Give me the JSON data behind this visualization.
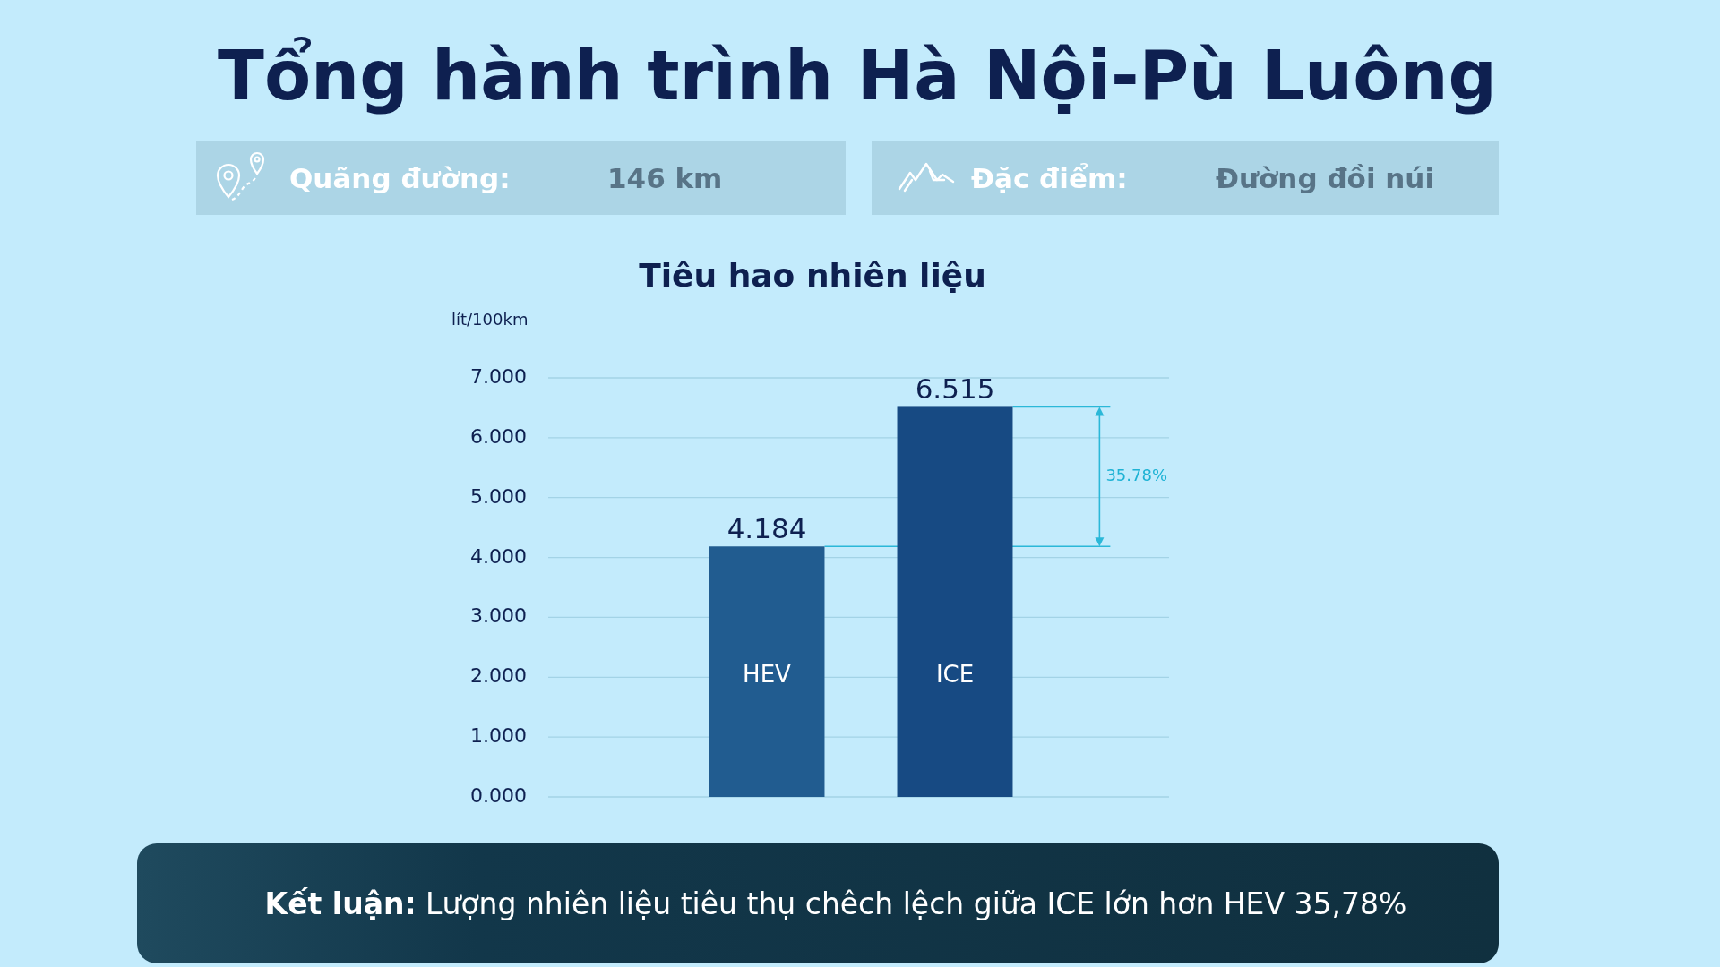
{
  "chart_data": {
    "type": "bar",
    "title": "Tổng hành trình Hà Nội-Pù Luông",
    "subtitle": "Tiêu hao nhiên liệu",
    "ylabel": "lít/100km",
    "categories": [
      "HEV",
      "ICE"
    ],
    "values": [
      4.184,
      6.515
    ],
    "colors": [
      "#215c90",
      "#174a83"
    ],
    "ylim": [
      0,
      7
    ],
    "yticks": [
      {
        "value": 0,
        "label": "0.000"
      },
      {
        "value": 1,
        "label": "1.000"
      },
      {
        "value": 2,
        "label": "2.000"
      },
      {
        "value": 3,
        "label": "3.000"
      },
      {
        "value": 4,
        "label": "4.000"
      },
      {
        "value": 5,
        "label": "5.000"
      },
      {
        "value": 6,
        "label": "6.000"
      },
      {
        "value": 7,
        "label": "7.000"
      }
    ],
    "grid": "y",
    "data_labels": true,
    "ref_lines": [
      {
        "axis": "y",
        "value": 4.184,
        "color": "#2bb8d8"
      },
      {
        "axis": "y",
        "value": 6.515,
        "color": "#2bb8d8"
      }
    ],
    "annotations": [
      "Quãng đường:",
      "146 km",
      "Đặc điểm:",
      "Đường đồi núi",
      "35.78%",
      "Kết luận: Lượng nhiên liệu tiêu thụ chêch lệch giữa ICE lớn hơn HEV 35,78%"
    ]
  }
}
